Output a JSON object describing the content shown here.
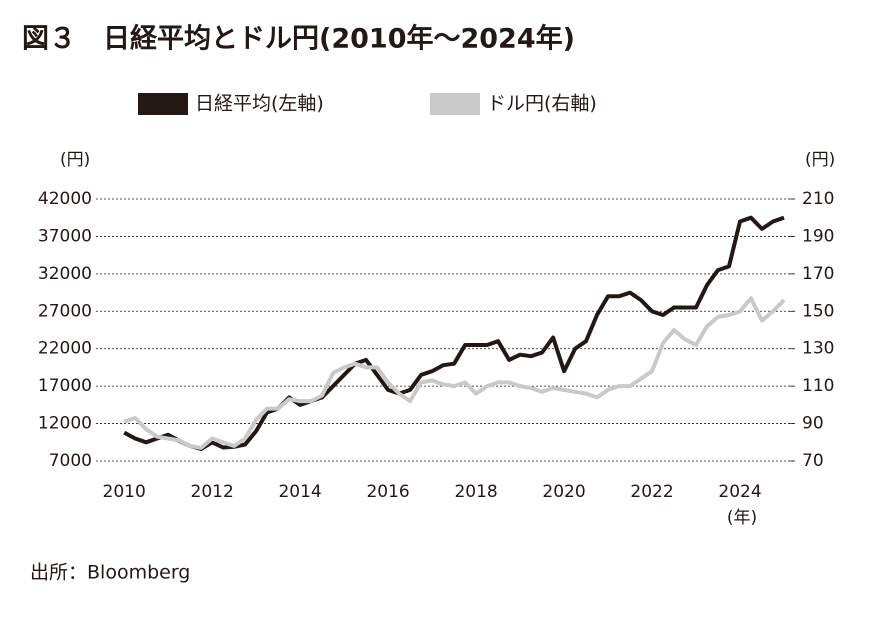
{
  "chart_data": {
    "type": "line",
    "title": "図３　日経平均とドル円(2010年～2024年)",
    "y_label": "(円)",
    "y2_label": "(円)",
    "x_label": "(年)",
    "source": "出所：Bloomberg",
    "x": [
      2010.0,
      2010.25,
      2010.5,
      2010.75,
      2011.0,
      2011.25,
      2011.5,
      2011.75,
      2012.0,
      2012.25,
      2012.5,
      2012.75,
      2013.0,
      2013.25,
      2013.5,
      2013.75,
      2014.0,
      2014.25,
      2014.5,
      2014.75,
      2015.0,
      2015.25,
      2015.5,
      2015.75,
      2016.0,
      2016.25,
      2016.5,
      2016.75,
      2017.0,
      2017.25,
      2017.5,
      2017.75,
      2018.0,
      2018.25,
      2018.5,
      2018.75,
      2019.0,
      2019.25,
      2019.5,
      2019.75,
      2020.0,
      2020.25,
      2020.5,
      2020.75,
      2021.0,
      2021.25,
      2021.5,
      2021.75,
      2022.0,
      2022.25,
      2022.5,
      2022.75,
      2023.0,
      2023.25,
      2023.5,
      2023.75,
      2024.0,
      2024.25,
      2024.5,
      2024.75,
      2025.0
    ],
    "series": [
      {
        "name": "日経平均(左軸)",
        "color": "#231815",
        "axis": "y",
        "values": [
          10800,
          10000,
          9500,
          10000,
          10500,
          9700,
          9000,
          8600,
          9500,
          8800,
          8900,
          9200,
          11000,
          13500,
          14000,
          15500,
          14500,
          15000,
          15500,
          17000,
          18500,
          20000,
          20500,
          18500,
          16500,
          16000,
          16500,
          18500,
          19000,
          19800,
          20000,
          22500,
          22500,
          22500,
          23000,
          20500,
          21200,
          21000,
          21500,
          23500,
          19000,
          22000,
          23000,
          26500,
          29000,
          29000,
          29500,
          28500,
          27000,
          26500,
          27500,
          27500,
          27500,
          30500,
          32500,
          33000,
          39000,
          39500,
          38000,
          39000,
          39500
        ]
      },
      {
        "name": "ドル円(右軸)",
        "color": "#c9c9c9",
        "axis": "y2",
        "values": [
          91,
          93,
          87,
          83,
          82,
          81,
          78,
          77,
          82,
          80,
          78,
          82,
          92,
          98,
          98,
          103,
          102,
          102,
          105,
          117,
          120,
          122,
          120,
          120,
          112,
          106,
          102,
          112,
          113,
          111,
          110,
          112,
          106,
          110,
          112,
          112,
          110,
          109,
          107,
          109,
          108,
          107,
          106,
          104,
          108,
          110,
          110,
          114,
          118,
          133,
          140,
          135,
          132,
          142,
          147,
          148,
          150,
          157,
          145,
          150,
          156
        ]
      }
    ],
    "xlim": [
      2009.36,
      2025.25
    ],
    "xticks": [
      2010,
      2012,
      2014,
      2016,
      2018,
      2020,
      2022,
      2024
    ],
    "ylim": [
      7000,
      42000
    ],
    "yticks": [
      7000,
      12000,
      17000,
      22000,
      27000,
      32000,
      37000,
      42000
    ],
    "y2lim": [
      70,
      210
    ],
    "y2ticks": [
      70,
      90,
      110,
      130,
      150,
      170,
      190,
      210
    ],
    "grid": true
  }
}
